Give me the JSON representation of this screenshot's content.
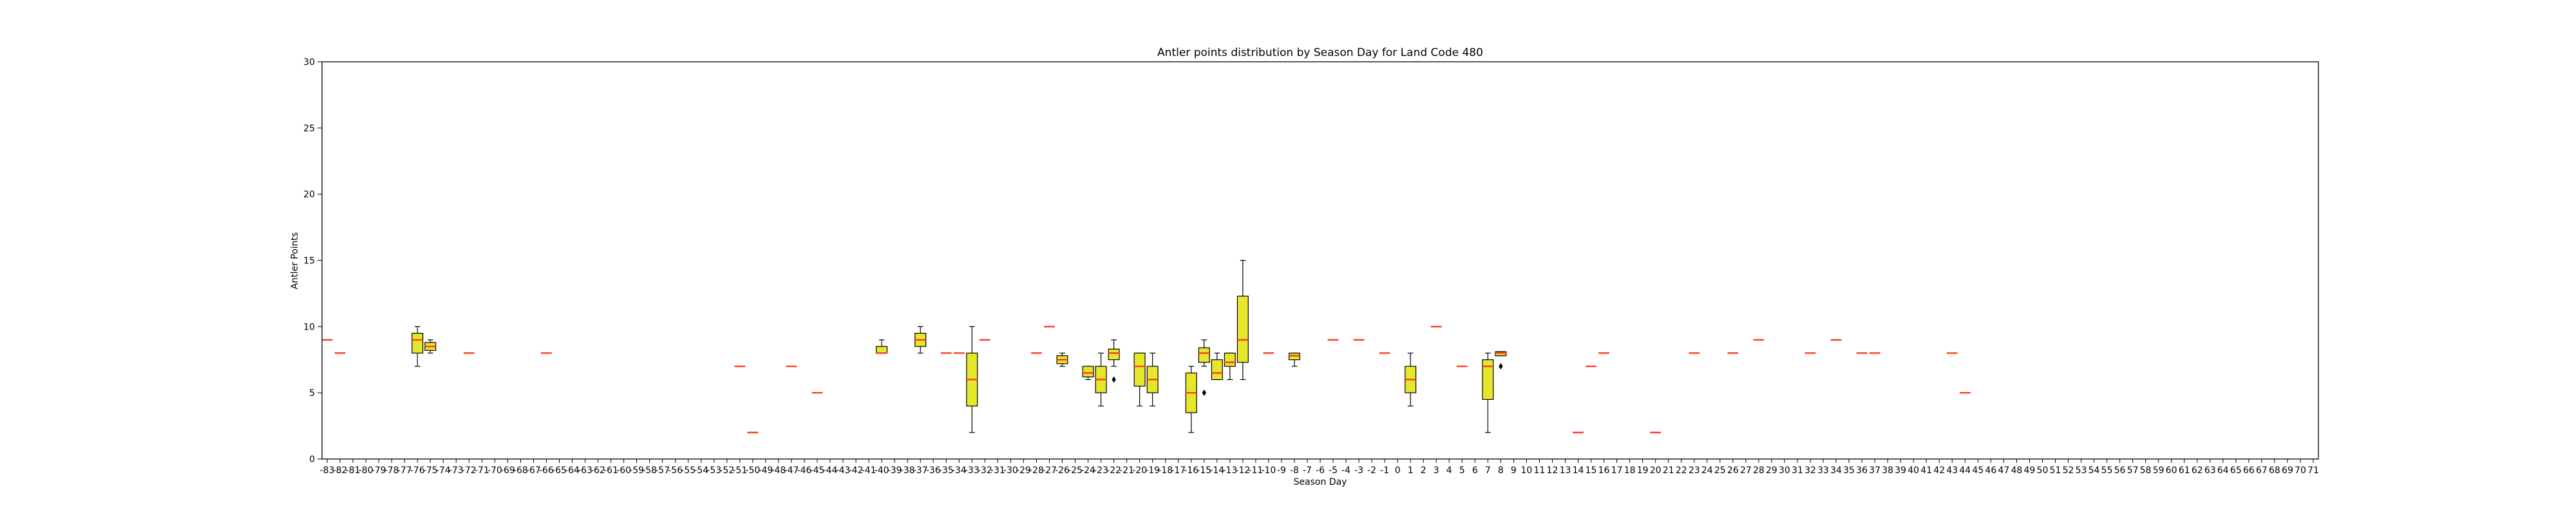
{
  "chart_data": {
    "type": "box",
    "title": "Antler points distribution by Season Day for Land Code 480",
    "xlabel": "Season Day",
    "ylabel": "Antler Points",
    "ylim": [
      0,
      30
    ],
    "yticks": [
      0,
      5,
      10,
      15,
      20,
      25,
      30
    ],
    "xrange": [
      -83,
      71
    ],
    "grid": false,
    "legend": "none",
    "colors": {
      "box_fill": "#e6e62a",
      "box_edge": "#000000",
      "median": "#ff3b1f",
      "whisker": "#000000",
      "frame": "#000000"
    },
    "boxes": [
      {
        "day": -83,
        "min": 9,
        "q1": 9,
        "median": 9,
        "q3": 9,
        "max": 9
      },
      {
        "day": -82,
        "min": 8,
        "q1": 8,
        "median": 8,
        "q3": 8,
        "max": 8
      },
      {
        "day": -76,
        "min": 7,
        "q1": 8,
        "median": 9,
        "q3": 9.5,
        "max": 10
      },
      {
        "day": -75,
        "min": 8,
        "q1": 8.2,
        "median": 8.5,
        "q3": 8.8,
        "max": 9
      },
      {
        "day": -72,
        "min": 8,
        "q1": 8,
        "median": 8,
        "q3": 8,
        "max": 8
      },
      {
        "day": -66,
        "min": 8,
        "q1": 8,
        "median": 8,
        "q3": 8,
        "max": 8
      },
      {
        "day": -51,
        "min": 7,
        "q1": 7,
        "median": 7,
        "q3": 7,
        "max": 7
      },
      {
        "day": -50,
        "min": 2,
        "q1": 2,
        "median": 2,
        "q3": 2,
        "max": 2
      },
      {
        "day": -47,
        "min": 7,
        "q1": 7,
        "median": 7,
        "q3": 7,
        "max": 7
      },
      {
        "day": -45,
        "min": 5,
        "q1": 5,
        "median": 5,
        "q3": 5,
        "max": 5
      },
      {
        "day": -40,
        "min": 8,
        "q1": 8,
        "median": 8,
        "q3": 8.5,
        "max": 9
      },
      {
        "day": -37,
        "min": 8,
        "q1": 8.5,
        "median": 9,
        "q3": 9.5,
        "max": 10
      },
      {
        "day": -35,
        "min": 8,
        "q1": 8,
        "median": 8,
        "q3": 8,
        "max": 8
      },
      {
        "day": -34,
        "min": 8,
        "q1": 8,
        "median": 8,
        "q3": 8,
        "max": 8
      },
      {
        "day": -33,
        "min": 2,
        "q1": 4,
        "median": 6,
        "q3": 8,
        "max": 10
      },
      {
        "day": -32,
        "min": 9,
        "q1": 9,
        "median": 9,
        "q3": 9,
        "max": 9
      },
      {
        "day": -28,
        "min": 8,
        "q1": 8,
        "median": 8,
        "q3": 8,
        "max": 8
      },
      {
        "day": -27,
        "min": 10,
        "q1": 10,
        "median": 10,
        "q3": 10,
        "max": 10
      },
      {
        "day": -26,
        "min": 7,
        "q1": 7.2,
        "median": 7.5,
        "q3": 7.8,
        "max": 8
      },
      {
        "day": -24,
        "min": 6,
        "q1": 6.2,
        "median": 6.5,
        "q3": 7,
        "max": 7
      },
      {
        "day": -23,
        "min": 4,
        "q1": 5,
        "median": 6,
        "q3": 7,
        "max": 8
      },
      {
        "day": -22,
        "min": 7,
        "q1": 7.5,
        "median": 8,
        "q3": 8.3,
        "max": 9,
        "outliers": [
          6
        ]
      },
      {
        "day": -20,
        "min": 4,
        "q1": 5.5,
        "median": 7,
        "q3": 8,
        "max": 8
      },
      {
        "day": -19,
        "min": 4,
        "q1": 5,
        "median": 6,
        "q3": 7,
        "max": 8
      },
      {
        "day": -16,
        "min": 2,
        "q1": 3.5,
        "median": 5,
        "q3": 6.5,
        "max": 7
      },
      {
        "day": -15,
        "min": 7,
        "q1": 7.3,
        "median": 8,
        "q3": 8.4,
        "max": 9,
        "outliers": [
          5
        ]
      },
      {
        "day": -14,
        "min": 6,
        "q1": 6,
        "median": 6.5,
        "q3": 7.5,
        "max": 8
      },
      {
        "day": -13,
        "min": 6,
        "q1": 7,
        "median": 7.3,
        "q3": 8,
        "max": 8
      },
      {
        "day": -12,
        "min": 6,
        "q1": 7.3,
        "median": 9,
        "q3": 12.3,
        "max": 15
      },
      {
        "day": -10,
        "min": 8,
        "q1": 8,
        "median": 8,
        "q3": 8,
        "max": 8
      },
      {
        "day": -8,
        "min": 7,
        "q1": 7.5,
        "median": 7.8,
        "q3": 8,
        "max": 8
      },
      {
        "day": -5,
        "min": 9,
        "q1": 9,
        "median": 9,
        "q3": 9,
        "max": 9
      },
      {
        "day": -3,
        "min": 9,
        "q1": 9,
        "median": 9,
        "q3": 9,
        "max": 9
      },
      {
        "day": -1,
        "min": 8,
        "q1": 8,
        "median": 8,
        "q3": 8,
        "max": 8
      },
      {
        "day": 1,
        "min": 4,
        "q1": 5,
        "median": 6,
        "q3": 7,
        "max": 8
      },
      {
        "day": 3,
        "min": 10,
        "q1": 10,
        "median": 10,
        "q3": 10,
        "max": 10
      },
      {
        "day": 5,
        "min": 7,
        "q1": 7,
        "median": 7,
        "q3": 7,
        "max": 7
      },
      {
        "day": 7,
        "min": 2,
        "q1": 4.5,
        "median": 7,
        "q3": 7.5,
        "max": 8
      },
      {
        "day": 8,
        "min": 7.8,
        "q1": 7.8,
        "median": 8,
        "q3": 8.1,
        "max": 8.1,
        "outliers": [
          7
        ]
      },
      {
        "day": 14,
        "min": 2,
        "q1": 2,
        "median": 2,
        "q3": 2,
        "max": 2
      },
      {
        "day": 15,
        "min": 7,
        "q1": 7,
        "median": 7,
        "q3": 7,
        "max": 7
      },
      {
        "day": 16,
        "min": 8,
        "q1": 8,
        "median": 8,
        "q3": 8,
        "max": 8
      },
      {
        "day": 20,
        "min": 2,
        "q1": 2,
        "median": 2,
        "q3": 2,
        "max": 2
      },
      {
        "day": 23,
        "min": 8,
        "q1": 8,
        "median": 8,
        "q3": 8,
        "max": 8
      },
      {
        "day": 26,
        "min": 8,
        "q1": 8,
        "median": 8,
        "q3": 8,
        "max": 8
      },
      {
        "day": 28,
        "min": 9,
        "q1": 9,
        "median": 9,
        "q3": 9,
        "max": 9
      },
      {
        "day": 32,
        "min": 8,
        "q1": 8,
        "median": 8,
        "q3": 8,
        "max": 8
      },
      {
        "day": 34,
        "min": 9,
        "q1": 9,
        "median": 9,
        "q3": 9,
        "max": 9
      },
      {
        "day": 36,
        "min": 8,
        "q1": 8,
        "median": 8,
        "q3": 8,
        "max": 8
      },
      {
        "day": 37,
        "min": 8,
        "q1": 8,
        "median": 8,
        "q3": 8,
        "max": 8
      },
      {
        "day": 43,
        "min": 8,
        "q1": 8,
        "median": 8,
        "q3": 8,
        "max": 8
      },
      {
        "day": 44,
        "min": 5,
        "q1": 5,
        "median": 5,
        "q3": 5,
        "max": 5
      }
    ]
  }
}
